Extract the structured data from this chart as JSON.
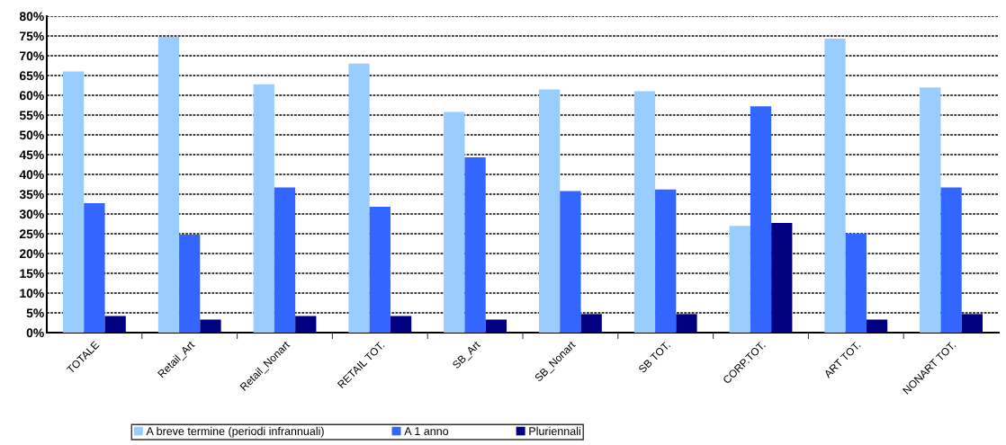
{
  "chart_data": {
    "type": "bar",
    "categories": [
      "TOTALE",
      "Retail_Art",
      "Retail_Nonart",
      "RETAIL TOT.",
      "SB_Art",
      "SB_Nonart",
      "SB TOT.",
      "CORP.TOT.",
      "ART TOT.",
      "NONART TOT."
    ],
    "series": [
      {
        "name": "A breve termine (periodi infrannuali)",
        "color": "#99ccff",
        "values": [
          66,
          74.8,
          62.8,
          68,
          55.8,
          61.5,
          61,
          27,
          74.3,
          62
        ]
      },
      {
        "name": "A 1 anno",
        "color": "#3366ff",
        "values": [
          32.7,
          24.8,
          36.7,
          31.8,
          44.3,
          35.8,
          36.2,
          57.2,
          25,
          36.7
        ]
      },
      {
        "name": "Pluriennali",
        "color": "#000080",
        "values": [
          4.2,
          3.3,
          4.2,
          4.2,
          3.3,
          4.7,
          4.7,
          27.7,
          3.3,
          4.7
        ]
      }
    ],
    "ylim": [
      0,
      80
    ],
    "yticks": [
      {
        "value": 0,
        "label": "0%"
      },
      {
        "value": 5,
        "label": "5%"
      },
      {
        "value": 10,
        "label": "10%"
      },
      {
        "value": 15,
        "label": "15%"
      },
      {
        "value": 20,
        "label": "20%"
      },
      {
        "value": 25,
        "label": "25%"
      },
      {
        "value": 30,
        "label": "30%"
      },
      {
        "value": 35,
        "label": "35%"
      },
      {
        "value": 40,
        "label": "40%"
      },
      {
        "value": 45,
        "label": "45%"
      },
      {
        "value": 50,
        "label": "50%"
      },
      {
        "value": 55,
        "label": "55%"
      },
      {
        "value": 60,
        "label": "60%"
      },
      {
        "value": 65,
        "label": "65%"
      },
      {
        "value": 70,
        "label": "70%"
      },
      {
        "value": 75,
        "label": "75%"
      },
      {
        "value": 80,
        "label": "80%"
      }
    ],
    "grid": "y",
    "legend": "bottom"
  }
}
